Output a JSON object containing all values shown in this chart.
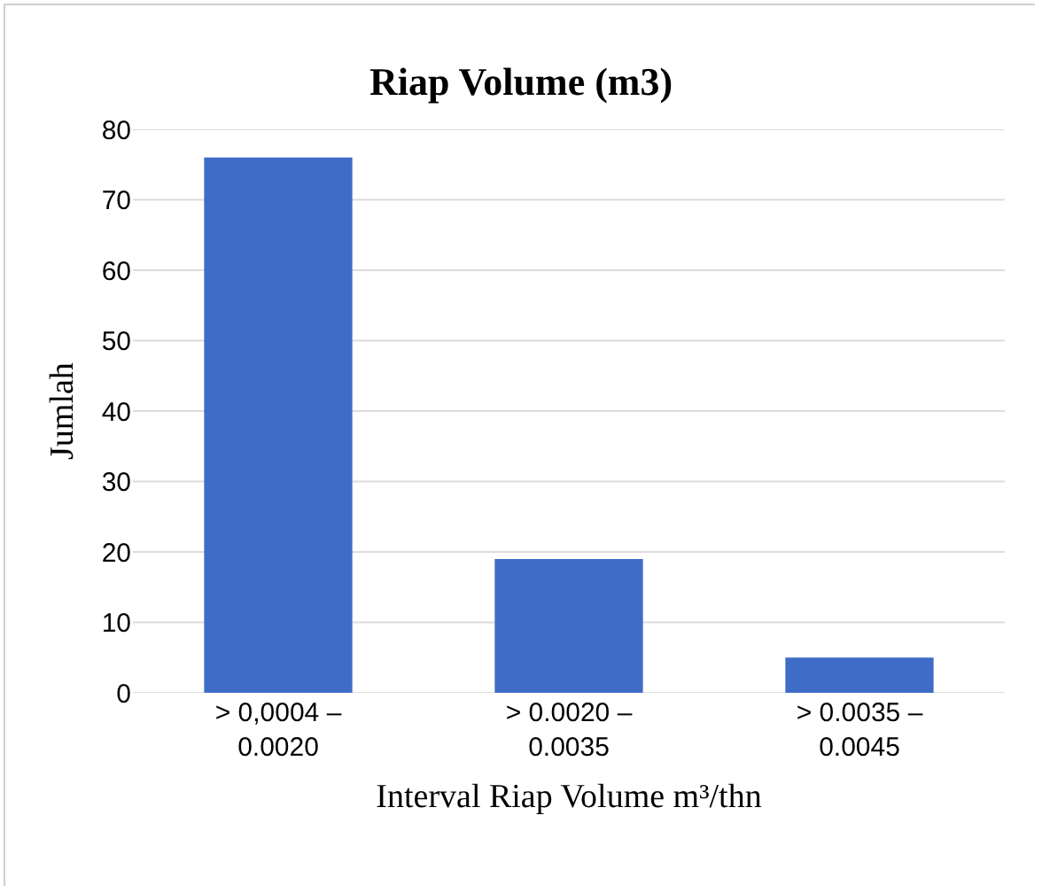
{
  "chart_data": {
    "type": "bar",
    "title": "Riap Volume (m3)",
    "xlabel": "Interval Riap Volume m³/thn",
    "ylabel": "Jumlah",
    "categories": [
      "> 0,0004 –\n0.0020",
      "> 0.0020 –\n0.0035",
      "> 0.0035 –\n0.0045"
    ],
    "values": [
      76,
      19,
      5
    ],
    "color": "#3f6cc6",
    "ylim": [
      0,
      80
    ],
    "yticks": [
      0,
      10,
      20,
      30,
      40,
      50,
      60,
      70,
      80
    ],
    "grid": "y"
  }
}
